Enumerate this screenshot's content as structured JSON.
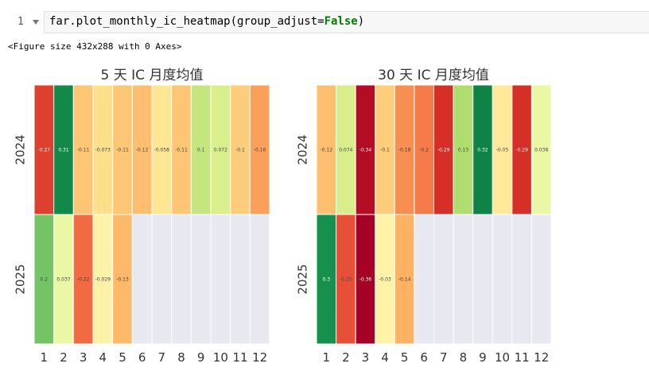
{
  "notebook": {
    "prompt_number": "1",
    "code": {
      "prefix": "far.plot_monthly_ic_heatmap(group_adjust=",
      "keyword": "False",
      "suffix": ")"
    },
    "output_text": "<Figure size 432x288 with 0 Axes>"
  },
  "colors": {
    "empty_cell": "#e8e8f0",
    "grid_line": "#ffffff",
    "code_background": "#f7f7f7",
    "keyword": "#008000"
  },
  "chart_data": [
    {
      "type": "heatmap",
      "title": "5 天 IC 月度均值",
      "x_categories": [
        "1",
        "2",
        "3",
        "4",
        "5",
        "6",
        "7",
        "8",
        "9",
        "10",
        "11",
        "12"
      ],
      "y_categories": [
        "2024",
        "2025"
      ],
      "colormap": "RdYlGn",
      "values": [
        [
          -0.27,
          0.31,
          -0.11,
          -0.073,
          -0.11,
          -0.12,
          -0.058,
          -0.11,
          0.1,
          0.072,
          -0.1,
          -0.16
        ],
        [
          0.2,
          0.037,
          -0.22,
          -0.029,
          -0.13,
          null,
          null,
          null,
          null,
          null,
          null,
          null
        ]
      ]
    },
    {
      "type": "heatmap",
      "title": "30 天 IC 月度均值",
      "x_categories": [
        "1",
        "2",
        "3",
        "4",
        "5",
        "6",
        "7",
        "8",
        "9",
        "10",
        "11",
        "12"
      ],
      "y_categories": [
        "2024",
        "2025"
      ],
      "colormap": "RdYlGn",
      "values": [
        [
          -0.12,
          0.074,
          -0.34,
          -0.1,
          -0.18,
          -0.2,
          -0.29,
          0.13,
          0.32,
          -0.05,
          -0.29,
          0.038
        ],
        [
          0.3,
          -0.25,
          -0.36,
          -0.03,
          -0.14,
          null,
          null,
          null,
          null,
          null,
          null,
          null
        ]
      ]
    }
  ]
}
